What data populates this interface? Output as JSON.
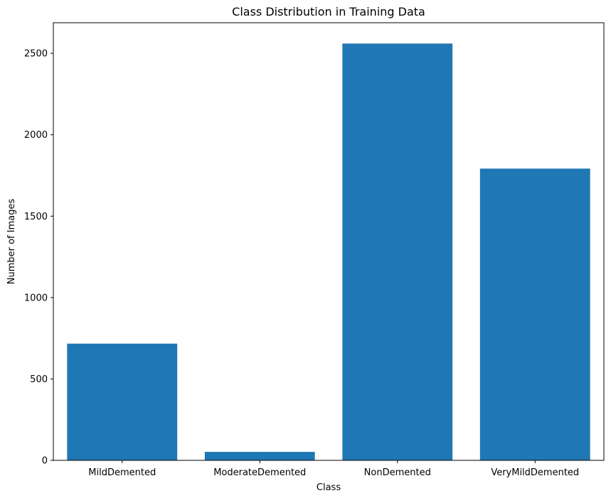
{
  "chart_data": {
    "type": "bar",
    "title": "Class Distribution in Training Data",
    "xlabel": "Class",
    "ylabel": "Number of Images",
    "categories": [
      "MildDemented",
      "ModerateDemented",
      "NonDemented",
      "VeryMildDemented"
    ],
    "values": [
      717,
      52,
      2560,
      1792
    ],
    "ylim": [
      0,
      2688
    ],
    "yticks": [
      0,
      500,
      1000,
      1500,
      2000,
      2500
    ],
    "grid": false,
    "legend": "none",
    "bar_color": "#1f77b4"
  }
}
